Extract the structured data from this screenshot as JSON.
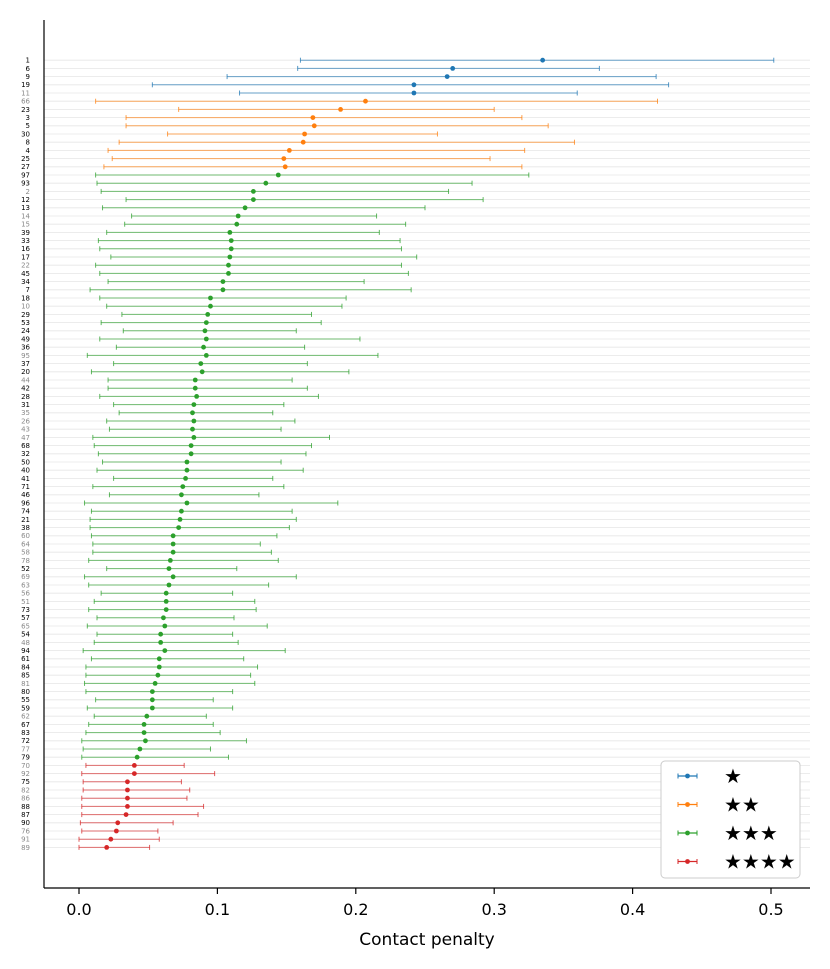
{
  "chart_data": {
    "type": "errorbar",
    "xlabel": "Contact penalty",
    "ylabel": "",
    "xlim": [
      -0.025,
      0.53
    ],
    "xticks": [
      "0.0",
      "0.1",
      "0.2",
      "0.3",
      "0.4",
      "0.5"
    ],
    "xtick_values": [
      0.0,
      0.1,
      0.2,
      0.3,
      0.4,
      0.5
    ],
    "grid": "horizontal",
    "legend_position": "bottom-right",
    "series": [
      {
        "name": "★",
        "color": "#1f77b4",
        "points": [
          {
            "label": "1",
            "mean": 0.335,
            "low": 0.16,
            "high": 0.502,
            "muted": false
          },
          {
            "label": "6",
            "mean": 0.27,
            "low": 0.158,
            "high": 0.376,
            "muted": false
          },
          {
            "label": "9",
            "mean": 0.266,
            "low": 0.107,
            "high": 0.417,
            "muted": false
          },
          {
            "label": "19",
            "mean": 0.242,
            "low": 0.053,
            "high": 0.426,
            "muted": false
          },
          {
            "label": "11",
            "mean": 0.242,
            "low": 0.116,
            "high": 0.36,
            "muted": true
          }
        ]
      },
      {
        "name": "★★",
        "color": "#ff7f0e",
        "points": [
          {
            "label": "66",
            "mean": 0.207,
            "low": 0.012,
            "high": 0.418,
            "muted": true
          },
          {
            "label": "23",
            "mean": 0.189,
            "low": 0.072,
            "high": 0.3,
            "muted": false
          },
          {
            "label": "3",
            "mean": 0.169,
            "low": 0.034,
            "high": 0.32,
            "muted": false
          },
          {
            "label": "5",
            "mean": 0.17,
            "low": 0.034,
            "high": 0.339,
            "muted": false
          },
          {
            "label": "30",
            "mean": 0.163,
            "low": 0.064,
            "high": 0.259,
            "muted": false
          },
          {
            "label": "8",
            "mean": 0.162,
            "low": 0.029,
            "high": 0.358,
            "muted": false
          },
          {
            "label": "4",
            "mean": 0.152,
            "low": 0.021,
            "high": 0.322,
            "muted": false
          },
          {
            "label": "25",
            "mean": 0.148,
            "low": 0.024,
            "high": 0.297,
            "muted": false
          },
          {
            "label": "27",
            "mean": 0.149,
            "low": 0.018,
            "high": 0.32,
            "muted": false
          }
        ]
      },
      {
        "name": "★★★",
        "color": "#2ca02c",
        "points": [
          {
            "label": "97",
            "mean": 0.144,
            "low": 0.012,
            "high": 0.325,
            "muted": false
          },
          {
            "label": "93",
            "mean": 0.135,
            "low": 0.013,
            "high": 0.284,
            "muted": false
          },
          {
            "label": "2",
            "mean": 0.126,
            "low": 0.016,
            "high": 0.267,
            "muted": true
          },
          {
            "label": "12",
            "mean": 0.126,
            "low": 0.034,
            "high": 0.292,
            "muted": false
          },
          {
            "label": "13",
            "mean": 0.12,
            "low": 0.017,
            "high": 0.25,
            "muted": false
          },
          {
            "label": "14",
            "mean": 0.115,
            "low": 0.038,
            "high": 0.215,
            "muted": true
          },
          {
            "label": "15",
            "mean": 0.114,
            "low": 0.033,
            "high": 0.236,
            "muted": true
          },
          {
            "label": "39",
            "mean": 0.109,
            "low": 0.02,
            "high": 0.217,
            "muted": false
          },
          {
            "label": "33",
            "mean": 0.11,
            "low": 0.014,
            "high": 0.232,
            "muted": false
          },
          {
            "label": "16",
            "mean": 0.11,
            "low": 0.015,
            "high": 0.233,
            "muted": false
          },
          {
            "label": "17",
            "mean": 0.109,
            "low": 0.023,
            "high": 0.244,
            "muted": false
          },
          {
            "label": "22",
            "mean": 0.108,
            "low": 0.012,
            "high": 0.233,
            "muted": true
          },
          {
            "label": "45",
            "mean": 0.108,
            "low": 0.015,
            "high": 0.238,
            "muted": false
          },
          {
            "label": "34",
            "mean": 0.104,
            "low": 0.021,
            "high": 0.206,
            "muted": false
          },
          {
            "label": "7",
            "mean": 0.104,
            "low": 0.008,
            "high": 0.24,
            "muted": false
          },
          {
            "label": "18",
            "mean": 0.095,
            "low": 0.015,
            "high": 0.193,
            "muted": false
          },
          {
            "label": "10",
            "mean": 0.095,
            "low": 0.02,
            "high": 0.19,
            "muted": true
          },
          {
            "label": "29",
            "mean": 0.093,
            "low": 0.031,
            "high": 0.168,
            "muted": false
          },
          {
            "label": "53",
            "mean": 0.092,
            "low": 0.016,
            "high": 0.175,
            "muted": false
          },
          {
            "label": "24",
            "mean": 0.091,
            "low": 0.032,
            "high": 0.157,
            "muted": false
          },
          {
            "label": "49",
            "mean": 0.092,
            "low": 0.015,
            "high": 0.203,
            "muted": false
          },
          {
            "label": "36",
            "mean": 0.09,
            "low": 0.027,
            "high": 0.163,
            "muted": false
          },
          {
            "label": "95",
            "mean": 0.092,
            "low": 0.006,
            "high": 0.216,
            "muted": true
          },
          {
            "label": "37",
            "mean": 0.088,
            "low": 0.025,
            "high": 0.165,
            "muted": false
          },
          {
            "label": "20",
            "mean": 0.089,
            "low": 0.009,
            "high": 0.195,
            "muted": false
          },
          {
            "label": "44",
            "mean": 0.084,
            "low": 0.021,
            "high": 0.154,
            "muted": true
          },
          {
            "label": "42",
            "mean": 0.084,
            "low": 0.021,
            "high": 0.165,
            "muted": false
          },
          {
            "label": "28",
            "mean": 0.085,
            "low": 0.015,
            "high": 0.173,
            "muted": false
          },
          {
            "label": "31",
            "mean": 0.083,
            "low": 0.025,
            "high": 0.148,
            "muted": false
          },
          {
            "label": "35",
            "mean": 0.082,
            "low": 0.029,
            "high": 0.14,
            "muted": true
          },
          {
            "label": "26",
            "mean": 0.083,
            "low": 0.02,
            "high": 0.156,
            "muted": true
          },
          {
            "label": "43",
            "mean": 0.082,
            "low": 0.022,
            "high": 0.146,
            "muted": true
          },
          {
            "label": "47",
            "mean": 0.083,
            "low": 0.01,
            "high": 0.181,
            "muted": true
          },
          {
            "label": "68",
            "mean": 0.081,
            "low": 0.011,
            "high": 0.168,
            "muted": false
          },
          {
            "label": "32",
            "mean": 0.081,
            "low": 0.014,
            "high": 0.164,
            "muted": false
          },
          {
            "label": "50",
            "mean": 0.078,
            "low": 0.017,
            "high": 0.146,
            "muted": false
          },
          {
            "label": "40",
            "mean": 0.078,
            "low": 0.013,
            "high": 0.162,
            "muted": false
          },
          {
            "label": "41",
            "mean": 0.077,
            "low": 0.025,
            "high": 0.14,
            "muted": false
          },
          {
            "label": "71",
            "mean": 0.075,
            "low": 0.01,
            "high": 0.148,
            "muted": false
          },
          {
            "label": "46",
            "mean": 0.074,
            "low": 0.022,
            "high": 0.13,
            "muted": false
          },
          {
            "label": "96",
            "mean": 0.078,
            "low": 0.004,
            "high": 0.187,
            "muted": false
          },
          {
            "label": "74",
            "mean": 0.074,
            "low": 0.009,
            "high": 0.154,
            "muted": false
          },
          {
            "label": "21",
            "mean": 0.073,
            "low": 0.008,
            "high": 0.157,
            "muted": false
          },
          {
            "label": "38",
            "mean": 0.072,
            "low": 0.008,
            "high": 0.152,
            "muted": false
          },
          {
            "label": "60",
            "mean": 0.068,
            "low": 0.009,
            "high": 0.143,
            "muted": true
          },
          {
            "label": "64",
            "mean": 0.068,
            "low": 0.01,
            "high": 0.131,
            "muted": true
          },
          {
            "label": "58",
            "mean": 0.068,
            "low": 0.01,
            "high": 0.139,
            "muted": true
          },
          {
            "label": "78",
            "mean": 0.066,
            "low": 0.007,
            "high": 0.144,
            "muted": true
          },
          {
            "label": "52",
            "mean": 0.065,
            "low": 0.02,
            "high": 0.114,
            "muted": false
          },
          {
            "label": "69",
            "mean": 0.068,
            "low": 0.004,
            "high": 0.157,
            "muted": true
          },
          {
            "label": "63",
            "mean": 0.065,
            "low": 0.007,
            "high": 0.137,
            "muted": true
          },
          {
            "label": "56",
            "mean": 0.063,
            "low": 0.016,
            "high": 0.111,
            "muted": true
          },
          {
            "label": "51",
            "mean": 0.063,
            "low": 0.011,
            "high": 0.127,
            "muted": true
          },
          {
            "label": "73",
            "mean": 0.063,
            "low": 0.007,
            "high": 0.128,
            "muted": false
          },
          {
            "label": "57",
            "mean": 0.061,
            "low": 0.013,
            "high": 0.112,
            "muted": false
          },
          {
            "label": "65",
            "mean": 0.062,
            "low": 0.006,
            "high": 0.136,
            "muted": true
          },
          {
            "label": "54",
            "mean": 0.059,
            "low": 0.013,
            "high": 0.111,
            "muted": false
          },
          {
            "label": "48",
            "mean": 0.059,
            "low": 0.011,
            "high": 0.115,
            "muted": true
          },
          {
            "label": "94",
            "mean": 0.062,
            "low": 0.003,
            "high": 0.149,
            "muted": false
          },
          {
            "label": "61",
            "mean": 0.058,
            "low": 0.009,
            "high": 0.119,
            "muted": false
          },
          {
            "label": "84",
            "mean": 0.058,
            "low": 0.005,
            "high": 0.129,
            "muted": false
          },
          {
            "label": "85",
            "mean": 0.057,
            "low": 0.005,
            "high": 0.124,
            "muted": false
          },
          {
            "label": "81",
            "mean": 0.055,
            "low": 0.004,
            "high": 0.127,
            "muted": true
          },
          {
            "label": "80",
            "mean": 0.053,
            "low": 0.005,
            "high": 0.111,
            "muted": false
          },
          {
            "label": "55",
            "mean": 0.053,
            "low": 0.012,
            "high": 0.097,
            "muted": false
          },
          {
            "label": "59",
            "mean": 0.053,
            "low": 0.006,
            "high": 0.111,
            "muted": false
          },
          {
            "label": "62",
            "mean": 0.049,
            "low": 0.011,
            "high": 0.092,
            "muted": true
          },
          {
            "label": "67",
            "mean": 0.047,
            "low": 0.007,
            "high": 0.097,
            "muted": false
          },
          {
            "label": "83",
            "mean": 0.047,
            "low": 0.005,
            "high": 0.102,
            "muted": false
          },
          {
            "label": "72",
            "mean": 0.048,
            "low": 0.002,
            "high": 0.121,
            "muted": false
          },
          {
            "label": "77",
            "mean": 0.044,
            "low": 0.003,
            "high": 0.095,
            "muted": true
          },
          {
            "label": "79",
            "mean": 0.042,
            "low": 0.002,
            "high": 0.108,
            "muted": false
          }
        ]
      },
      {
        "name": "★★★★",
        "color": "#d62728",
        "points": [
          {
            "label": "70",
            "mean": 0.04,
            "low": 0.005,
            "high": 0.076,
            "muted": true
          },
          {
            "label": "92",
            "mean": 0.04,
            "low": 0.002,
            "high": 0.098,
            "muted": true
          },
          {
            "label": "75",
            "mean": 0.035,
            "low": 0.003,
            "high": 0.074,
            "muted": false
          },
          {
            "label": "82",
            "mean": 0.035,
            "low": 0.003,
            "high": 0.08,
            "muted": true
          },
          {
            "label": "86",
            "mean": 0.035,
            "low": 0.002,
            "high": 0.078,
            "muted": true
          },
          {
            "label": "88",
            "mean": 0.035,
            "low": 0.002,
            "high": 0.09,
            "muted": false
          },
          {
            "label": "87",
            "mean": 0.034,
            "low": 0.002,
            "high": 0.086,
            "muted": false
          },
          {
            "label": "90",
            "mean": 0.028,
            "low": 0.001,
            "high": 0.068,
            "muted": false
          },
          {
            "label": "76",
            "mean": 0.027,
            "low": 0.002,
            "high": 0.057,
            "muted": true
          },
          {
            "label": "91",
            "mean": 0.023,
            "low": 0.0,
            "high": 0.058,
            "muted": true
          },
          {
            "label": "89",
            "mean": 0.02,
            "low": 0.0,
            "high": 0.051,
            "muted": true
          }
        ]
      }
    ]
  }
}
